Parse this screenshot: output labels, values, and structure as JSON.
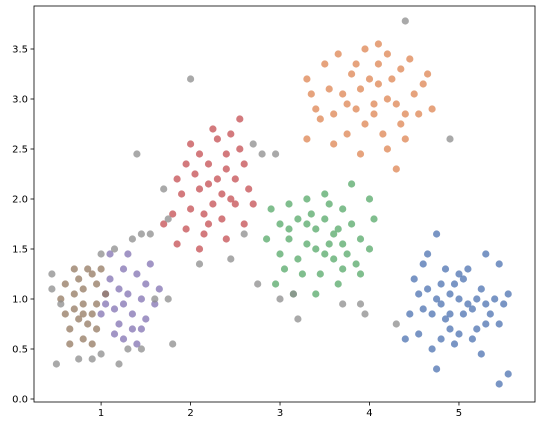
{
  "chart_data": {
    "type": "scatter",
    "title": "",
    "xlabel": "",
    "ylabel": "",
    "xlim": [
      0.25,
      5.85
    ],
    "ylim": [
      -0.03,
      3.93
    ],
    "xticks": [
      1,
      2,
      3,
      4,
      5
    ],
    "xtick_labels": [
      "1",
      "2",
      "3",
      "4",
      "5"
    ],
    "yticks": [
      0.0,
      0.5,
      1.0,
      1.5,
      2.0,
      2.5,
      3.0,
      3.5
    ],
    "ytick_labels": [
      "0.0",
      "0.5",
      "1.0",
      "1.5",
      "2.0",
      "2.5",
      "3.0",
      "3.5"
    ],
    "grid": false,
    "legend": "none",
    "series": [
      {
        "color": "#4c72b0",
        "points": [
          [
            4.75,
            1.0
          ],
          [
            4.8,
            0.95
          ],
          [
            4.9,
            1.05
          ],
          [
            5.0,
            1.0
          ],
          [
            5.1,
            0.95
          ],
          [
            5.2,
            1.0
          ],
          [
            4.7,
            0.85
          ],
          [
            4.85,
            0.8
          ],
          [
            5.05,
            0.85
          ],
          [
            5.15,
            0.9
          ],
          [
            4.65,
            1.1
          ],
          [
            4.95,
            1.15
          ],
          [
            5.05,
            1.2
          ],
          [
            5.25,
            1.1
          ],
          [
            4.6,
            0.9
          ],
          [
            4.55,
            1.05
          ],
          [
            5.3,
            0.95
          ],
          [
            5.35,
            0.85
          ],
          [
            4.9,
            0.7
          ],
          [
            5.0,
            0.65
          ],
          [
            4.8,
            0.6
          ],
          [
            5.2,
            0.7
          ],
          [
            5.3,
            0.75
          ],
          [
            4.7,
            0.5
          ],
          [
            4.95,
            0.55
          ],
          [
            5.45,
            0.75
          ],
          [
            5.4,
            1.0
          ],
          [
            5.5,
            0.95
          ],
          [
            4.5,
            1.2
          ],
          [
            4.6,
            1.35
          ],
          [
            4.85,
            1.3
          ],
          [
            5.1,
            1.3
          ],
          [
            4.45,
            0.85
          ],
          [
            4.4,
            0.6
          ],
          [
            5.55,
            1.05
          ],
          [
            5.45,
            1.35
          ],
          [
            5.3,
            1.45
          ],
          [
            4.75,
            1.65
          ],
          [
            5.55,
            0.25
          ],
          [
            5.45,
            0.15
          ],
          [
            4.75,
            0.3
          ],
          [
            5.25,
            0.45
          ],
          [
            4.65,
            1.45
          ],
          [
            4.55,
            0.65
          ],
          [
            5.0,
            1.25
          ],
          [
            4.9,
            0.85
          ],
          [
            5.15,
            0.6
          ],
          [
            4.8,
            1.15
          ]
        ]
      },
      {
        "color": "#dd8452",
        "points": [
          [
            3.9,
            3.1
          ],
          [
            4.0,
            3.2
          ],
          [
            4.1,
            3.15
          ],
          [
            4.2,
            3.0
          ],
          [
            4.3,
            2.95
          ],
          [
            3.85,
            2.9
          ],
          [
            3.95,
            2.75
          ],
          [
            4.05,
            2.85
          ],
          [
            4.25,
            3.2
          ],
          [
            4.35,
            3.3
          ],
          [
            4.1,
            3.35
          ],
          [
            3.8,
            3.25
          ],
          [
            3.7,
            3.05
          ],
          [
            3.6,
            2.85
          ],
          [
            3.75,
            2.65
          ],
          [
            4.15,
            2.65
          ],
          [
            4.4,
            2.85
          ],
          [
            4.5,
            3.05
          ],
          [
            4.6,
            3.15
          ],
          [
            4.45,
            3.4
          ],
          [
            4.2,
            3.45
          ],
          [
            3.95,
            3.5
          ],
          [
            3.55,
            3.1
          ],
          [
            3.5,
            3.35
          ],
          [
            3.45,
            2.8
          ],
          [
            3.6,
            2.55
          ],
          [
            3.9,
            2.45
          ],
          [
            4.2,
            2.5
          ],
          [
            4.4,
            2.6
          ],
          [
            4.3,
            2.3
          ],
          [
            4.1,
            3.55
          ],
          [
            3.65,
            3.45
          ],
          [
            3.35,
            3.05
          ],
          [
            3.3,
            2.6
          ],
          [
            4.55,
            2.85
          ],
          [
            4.7,
            2.9
          ],
          [
            4.65,
            3.25
          ],
          [
            3.85,
            3.35
          ],
          [
            4.05,
            2.95
          ],
          [
            4.35,
            2.75
          ],
          [
            3.75,
            2.95
          ],
          [
            3.4,
            2.9
          ],
          [
            3.3,
            3.2
          ]
        ]
      },
      {
        "color": "#55a868",
        "points": [
          [
            3.2,
            1.8
          ],
          [
            3.3,
            1.75
          ],
          [
            3.4,
            1.7
          ],
          [
            3.5,
            1.8
          ],
          [
            3.6,
            1.65
          ],
          [
            3.7,
            1.55
          ],
          [
            3.3,
            1.55
          ],
          [
            3.4,
            1.5
          ],
          [
            3.5,
            1.45
          ],
          [
            3.6,
            1.4
          ],
          [
            3.2,
            1.4
          ],
          [
            3.1,
            1.6
          ],
          [
            3.0,
            1.75
          ],
          [
            2.9,
            1.9
          ],
          [
            3.1,
            1.95
          ],
          [
            3.3,
            2.0
          ],
          [
            3.5,
            2.05
          ],
          [
            3.7,
            1.9
          ],
          [
            3.8,
            1.75
          ],
          [
            3.9,
            1.6
          ],
          [
            4.0,
            1.5
          ],
          [
            3.85,
            1.35
          ],
          [
            3.7,
            1.3
          ],
          [
            3.45,
            1.25
          ],
          [
            3.25,
            1.25
          ],
          [
            3.05,
            1.3
          ],
          [
            3.0,
            1.45
          ],
          [
            2.85,
            1.6
          ],
          [
            2.95,
            1.15
          ],
          [
            3.15,
            1.05
          ],
          [
            3.4,
            1.05
          ],
          [
            3.65,
            1.15
          ],
          [
            3.9,
            1.25
          ],
          [
            4.05,
            1.8
          ],
          [
            4.0,
            2.0
          ],
          [
            3.8,
            2.15
          ],
          [
            3.55,
            1.95
          ],
          [
            3.35,
            1.85
          ],
          [
            3.1,
            1.7
          ],
          [
            3.65,
            1.7
          ],
          [
            3.75,
            1.45
          ],
          [
            3.55,
            1.55
          ]
        ]
      },
      {
        "color": "#c44e52",
        "points": [
          [
            2.1,
            2.1
          ],
          [
            2.2,
            2.15
          ],
          [
            2.3,
            2.2
          ],
          [
            2.4,
            2.3
          ],
          [
            2.5,
            2.2
          ],
          [
            2.35,
            2.05
          ],
          [
            2.25,
            1.95
          ],
          [
            2.15,
            1.85
          ],
          [
            2.0,
            1.9
          ],
          [
            1.9,
            2.05
          ],
          [
            2.05,
            2.25
          ],
          [
            2.2,
            2.35
          ],
          [
            2.4,
            2.45
          ],
          [
            2.55,
            2.5
          ],
          [
            2.45,
            2.65
          ],
          [
            2.3,
            2.6
          ],
          [
            2.1,
            2.45
          ],
          [
            1.95,
            2.35
          ],
          [
            2.6,
            2.35
          ],
          [
            2.65,
            2.1
          ],
          [
            2.5,
            1.95
          ],
          [
            2.35,
            1.8
          ],
          [
            2.15,
            1.65
          ],
          [
            1.95,
            1.7
          ],
          [
            1.8,
            1.85
          ],
          [
            1.85,
            2.2
          ],
          [
            2.0,
            2.55
          ],
          [
            2.25,
            2.7
          ],
          [
            2.55,
            2.8
          ],
          [
            2.7,
            1.95
          ],
          [
            2.6,
            1.75
          ],
          [
            2.4,
            1.6
          ],
          [
            2.1,
            1.5
          ],
          [
            1.85,
            1.55
          ],
          [
            1.7,
            1.75
          ],
          [
            2.45,
            2.0
          ],
          [
            2.2,
            1.75
          ]
        ]
      },
      {
        "color": "#8172b2",
        "points": [
          [
            1.2,
            1.1
          ],
          [
            1.3,
            1.05
          ],
          [
            1.25,
            0.95
          ],
          [
            1.15,
            0.9
          ],
          [
            1.35,
            0.85
          ],
          [
            1.45,
            1.0
          ],
          [
            1.5,
            1.15
          ],
          [
            1.4,
            1.25
          ],
          [
            1.25,
            1.3
          ],
          [
            1.1,
            1.2
          ],
          [
            1.05,
            1.05
          ],
          [
            1.2,
            0.75
          ],
          [
            1.35,
            0.7
          ],
          [
            1.5,
            0.8
          ],
          [
            1.6,
            0.95
          ],
          [
            1.55,
            1.35
          ],
          [
            1.3,
            1.45
          ],
          [
            1.1,
            1.45
          ],
          [
            1.0,
            0.85
          ],
          [
            1.15,
            0.65
          ],
          [
            1.4,
            0.55
          ],
          [
            1.25,
            0.6
          ],
          [
            1.45,
            0.7
          ],
          [
            1.65,
            1.1
          ],
          [
            1.05,
            0.95
          ]
        ]
      },
      {
        "color": "#937860",
        "points": [
          [
            0.7,
            0.9
          ],
          [
            0.8,
            0.95
          ],
          [
            0.9,
            0.85
          ],
          [
            0.75,
            0.8
          ],
          [
            0.85,
            0.75
          ],
          [
            0.95,
            0.95
          ],
          [
            0.7,
            1.05
          ],
          [
            0.8,
            1.1
          ],
          [
            0.95,
            1.15
          ],
          [
            0.65,
            0.7
          ],
          [
            0.6,
            0.85
          ],
          [
            0.55,
            1.0
          ],
          [
            0.75,
            1.2
          ],
          [
            0.9,
            1.25
          ],
          [
            1.0,
            1.3
          ],
          [
            0.85,
            1.3
          ],
          [
            0.7,
            1.3
          ],
          [
            1.05,
            1.05
          ],
          [
            0.95,
            0.7
          ],
          [
            0.8,
            0.6
          ],
          [
            0.65,
            0.55
          ],
          [
            0.9,
            0.55
          ],
          [
            0.6,
            1.15
          ],
          [
            0.8,
            0.85
          ]
        ]
      },
      {
        "color": "#8c8c8c",
        "points": [
          [
            4.4,
            3.78
          ],
          [
            2.0,
            3.2
          ],
          [
            1.4,
            2.45
          ],
          [
            2.8,
            2.45
          ],
          [
            1.7,
            2.1
          ],
          [
            1.75,
            1.8
          ],
          [
            1.55,
            1.65
          ],
          [
            1.35,
            1.6
          ],
          [
            1.45,
            1.65
          ],
          [
            0.45,
            1.25
          ],
          [
            0.45,
            1.1
          ],
          [
            1.0,
            1.45
          ],
          [
            1.15,
            1.5
          ],
          [
            0.55,
            0.95
          ],
          [
            0.75,
            0.4
          ],
          [
            0.9,
            0.4
          ],
          [
            1.0,
            0.45
          ],
          [
            0.5,
            0.35
          ],
          [
            1.3,
            0.5
          ],
          [
            1.45,
            0.5
          ],
          [
            1.8,
            0.55
          ],
          [
            1.75,
            1.0
          ],
          [
            2.1,
            1.35
          ],
          [
            2.45,
            1.4
          ],
          [
            2.6,
            1.65
          ],
          [
            2.75,
            1.15
          ],
          [
            3.0,
            1.0
          ],
          [
            3.15,
            1.05
          ],
          [
            3.7,
            0.95
          ],
          [
            3.9,
            0.95
          ],
          [
            3.95,
            0.85
          ],
          [
            4.3,
            0.75
          ],
          [
            4.9,
            2.6
          ],
          [
            2.95,
            2.45
          ],
          [
            3.2,
            0.8
          ],
          [
            2.7,
            2.55
          ],
          [
            1.6,
            1.0
          ],
          [
            1.2,
            0.35
          ]
        ]
      }
    ]
  }
}
